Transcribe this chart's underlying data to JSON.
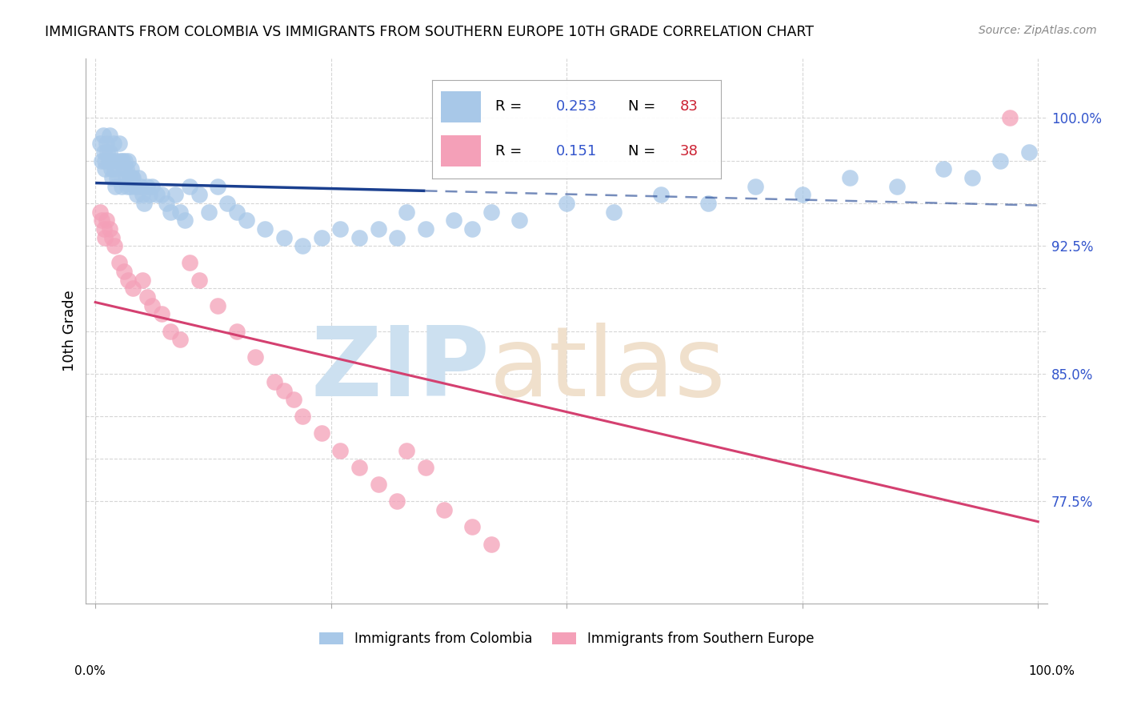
{
  "title": "IMMIGRANTS FROM COLOMBIA VS IMMIGRANTS FROM SOUTHERN EUROPE 10TH GRADE CORRELATION CHART",
  "source": "Source: ZipAtlas.com",
  "ylabel": "10th Grade",
  "ylim": [
    0.715,
    1.035
  ],
  "xlim": [
    -0.01,
    1.01
  ],
  "colombia_R": 0.253,
  "colombia_N": 83,
  "south_europe_R": 0.151,
  "south_europe_N": 38,
  "colombia_color": "#a8c8e8",
  "south_europe_color": "#f4a0b8",
  "regression_colombia_color": "#1a3f8f",
  "regression_south_europe_color": "#d44070",
  "legend_R_color": "#3355cc",
  "legend_N_color": "#cc2233",
  "watermark_zip_color": "#cce0f0",
  "watermark_atlas_color": "#f0e0cc",
  "background_color": "#ffffff",
  "grid_color": "#cccccc",
  "y_ticks": [
    0.775,
    0.8,
    0.825,
    0.85,
    0.875,
    0.9,
    0.925,
    0.95,
    0.975,
    1.0
  ],
  "y_labels": {
    "0.775": "77.5%",
    "0.85": "85.0%",
    "0.925": "92.5%",
    "1.0": "100.0%"
  },
  "x_ticks": [
    0.0,
    0.25,
    0.5,
    0.75,
    1.0
  ],
  "colombia_x": [
    0.005,
    0.007,
    0.008,
    0.009,
    0.01,
    0.01,
    0.012,
    0.013,
    0.014,
    0.015,
    0.015,
    0.016,
    0.017,
    0.018,
    0.019,
    0.02,
    0.021,
    0.022,
    0.023,
    0.025,
    0.026,
    0.028,
    0.029,
    0.03,
    0.031,
    0.032,
    0.033,
    0.034,
    0.035,
    0.036,
    0.037,
    0.038,
    0.039,
    0.04,
    0.042,
    0.044,
    0.046,
    0.048,
    0.05,
    0.052,
    0.055,
    0.058,
    0.06,
    0.065,
    0.07,
    0.075,
    0.08,
    0.085,
    0.09,
    0.095,
    0.1,
    0.11,
    0.12,
    0.13,
    0.14,
    0.15,
    0.16,
    0.18,
    0.2,
    0.22,
    0.24,
    0.26,
    0.28,
    0.3,
    0.32,
    0.33,
    0.35,
    0.38,
    0.4,
    0.42,
    0.45,
    0.5,
    0.55,
    0.6,
    0.65,
    0.7,
    0.75,
    0.8,
    0.85,
    0.9,
    0.93,
    0.96,
    0.99
  ],
  "colombia_y": [
    0.985,
    0.975,
    0.99,
    0.98,
    0.975,
    0.97,
    0.985,
    0.98,
    0.975,
    0.99,
    0.98,
    0.975,
    0.97,
    0.965,
    0.985,
    0.97,
    0.96,
    0.975,
    0.965,
    0.985,
    0.975,
    0.96,
    0.975,
    0.97,
    0.975,
    0.965,
    0.97,
    0.96,
    0.975,
    0.965,
    0.96,
    0.97,
    0.965,
    0.965,
    0.96,
    0.955,
    0.965,
    0.96,
    0.955,
    0.95,
    0.96,
    0.955,
    0.96,
    0.955,
    0.955,
    0.95,
    0.945,
    0.955,
    0.945,
    0.94,
    0.96,
    0.955,
    0.945,
    0.96,
    0.95,
    0.945,
    0.94,
    0.935,
    0.93,
    0.925,
    0.93,
    0.935,
    0.93,
    0.935,
    0.93,
    0.945,
    0.935,
    0.94,
    0.935,
    0.945,
    0.94,
    0.95,
    0.945,
    0.955,
    0.95,
    0.96,
    0.955,
    0.965,
    0.96,
    0.97,
    0.965,
    0.975,
    0.98
  ],
  "south_europe_x": [
    0.005,
    0.007,
    0.009,
    0.01,
    0.012,
    0.015,
    0.018,
    0.02,
    0.025,
    0.03,
    0.035,
    0.04,
    0.05,
    0.055,
    0.06,
    0.07,
    0.08,
    0.09,
    0.1,
    0.11,
    0.13,
    0.15,
    0.17,
    0.19,
    0.2,
    0.21,
    0.22,
    0.24,
    0.26,
    0.28,
    0.3,
    0.32,
    0.33,
    0.35,
    0.37,
    0.4,
    0.42,
    0.97
  ],
  "south_europe_y": [
    0.945,
    0.94,
    0.935,
    0.93,
    0.94,
    0.935,
    0.93,
    0.925,
    0.915,
    0.91,
    0.905,
    0.9,
    0.905,
    0.895,
    0.89,
    0.885,
    0.875,
    0.87,
    0.915,
    0.905,
    0.89,
    0.875,
    0.86,
    0.845,
    0.84,
    0.835,
    0.825,
    0.815,
    0.805,
    0.795,
    0.785,
    0.775,
    0.805,
    0.795,
    0.77,
    0.76,
    0.75,
    1.0
  ]
}
